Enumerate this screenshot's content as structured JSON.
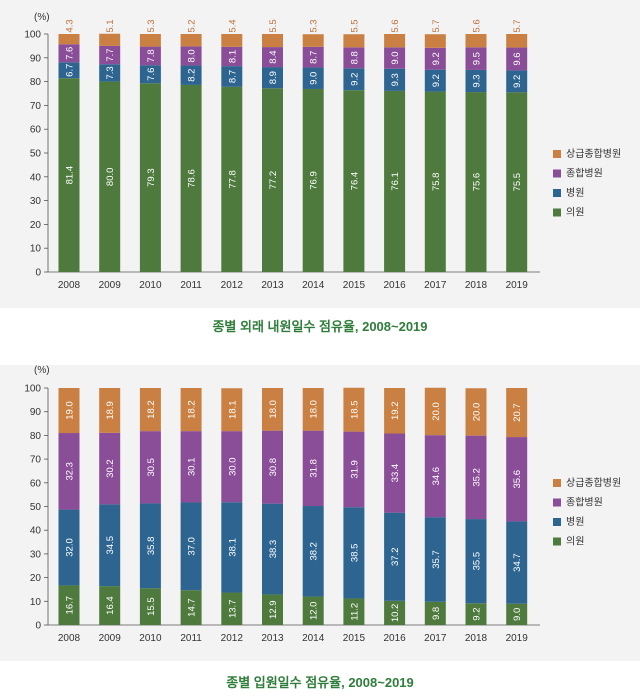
{
  "colors": {
    "tertiary": "#c98042",
    "general": "#8a4e98",
    "hospital": "#2e6590",
    "clinic": "#4e7a3e"
  },
  "chart_data": [
    {
      "type": "bar",
      "stacked": true,
      "title": "종별 외래 내원일수 점유율, 2008~2019",
      "ylabel": "(%)",
      "ylim": [
        0,
        100
      ],
      "yticks": [
        0,
        10,
        20,
        30,
        40,
        50,
        60,
        70,
        80,
        90,
        100
      ],
      "categories": [
        "2008",
        "2009",
        "2010",
        "2011",
        "2012",
        "2013",
        "2014",
        "2015",
        "2016",
        "2017",
        "2018",
        "2019"
      ],
      "legend_position": "right",
      "series": [
        {
          "name": "의원",
          "key": "clinic",
          "values": [
            81.4,
            80.0,
            79.3,
            78.6,
            77.8,
            77.2,
            76.9,
            76.4,
            76.1,
            75.8,
            75.6,
            75.5
          ]
        },
        {
          "name": "병원",
          "key": "hospital",
          "values": [
            6.7,
            7.3,
            7.6,
            8.2,
            8.7,
            8.9,
            9.0,
            9.2,
            9.3,
            9.2,
            9.3,
            9.2
          ]
        },
        {
          "name": "종합병원",
          "key": "general",
          "values": [
            7.6,
            7.7,
            7.8,
            8.0,
            8.1,
            8.4,
            8.7,
            8.8,
            9.0,
            9.2,
            9.5,
            9.6
          ]
        },
        {
          "name": "상급종합병원",
          "key": "tertiary",
          "values": [
            4.3,
            5.1,
            5.3,
            5.2,
            5.4,
            5.5,
            5.3,
            5.5,
            5.6,
            5.7,
            5.6,
            5.7
          ]
        }
      ]
    },
    {
      "type": "bar",
      "stacked": true,
      "title": "종별 입원일수 점유율, 2008~2019",
      "ylabel": "(%)",
      "ylim": [
        0,
        100
      ],
      "yticks": [
        0,
        10,
        20,
        30,
        40,
        50,
        60,
        70,
        80,
        90,
        100
      ],
      "categories": [
        "2008",
        "2009",
        "2010",
        "2011",
        "2012",
        "2013",
        "2014",
        "2015",
        "2016",
        "2017",
        "2018",
        "2019"
      ],
      "legend_position": "right",
      "series": [
        {
          "name": "의원",
          "key": "clinic",
          "values": [
            16.7,
            16.4,
            15.5,
            14.7,
            13.7,
            12.9,
            12.0,
            11.2,
            10.2,
            9.8,
            9.2,
            9.0
          ]
        },
        {
          "name": "병원",
          "key": "hospital",
          "values": [
            32.0,
            34.5,
            35.8,
            37.0,
            38.1,
            38.3,
            38.2,
            38.5,
            37.2,
            35.7,
            35.5,
            34.7
          ]
        },
        {
          "name": "종합병원",
          "key": "general",
          "values": [
            32.3,
            30.2,
            30.5,
            30.1,
            30.0,
            30.8,
            31.8,
            31.9,
            33.4,
            34.6,
            35.2,
            35.6
          ]
        },
        {
          "name": "상급종합병원",
          "key": "tertiary",
          "values": [
            19.0,
            18.9,
            18.2,
            18.2,
            18.1,
            18.0,
            18.0,
            18.5,
            19.2,
            20.0,
            20.0,
            20.7
          ]
        }
      ]
    }
  ]
}
